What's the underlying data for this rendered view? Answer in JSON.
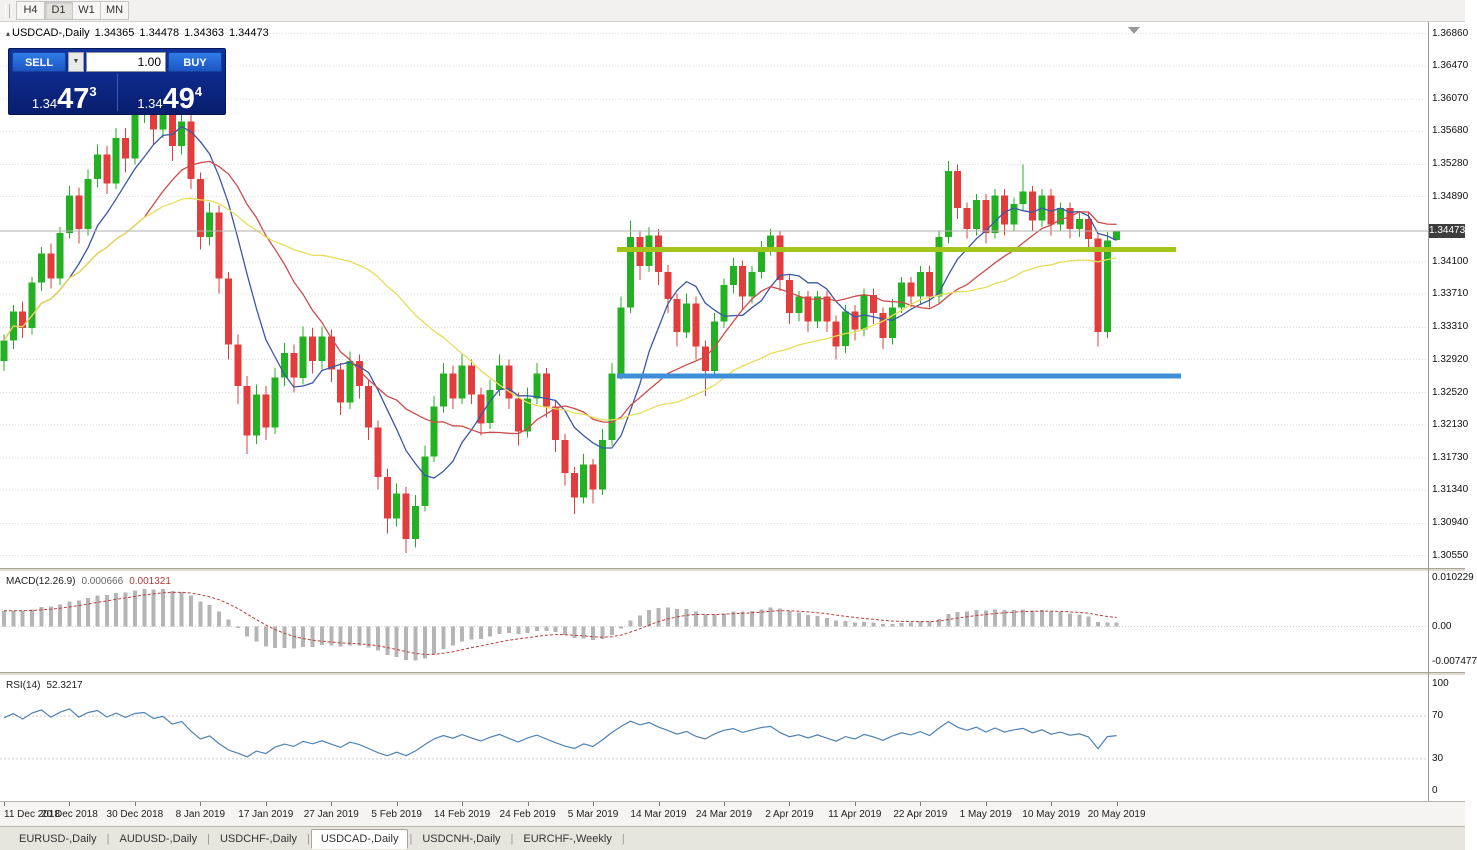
{
  "toolbar": {
    "periods": [
      "H4",
      "D1",
      "W1",
      "MN"
    ],
    "active": "D1"
  },
  "icons": {
    "collapse": "▴",
    "dropdown": "▼"
  },
  "ohlc": {
    "symbol": "USDCAD-,Daily",
    "open": "1.34365",
    "high": "1.34478",
    "low": "1.34363",
    "close": "1.34473"
  },
  "trade": {
    "sell_label": "SELL",
    "buy_label": "BUY",
    "volume": "1.00",
    "sell_price": {
      "base": "1.34",
      "big": "47",
      "sup": "3"
    },
    "buy_price": {
      "base": "1.34",
      "big": "49",
      "sup": "4"
    }
  },
  "current_price": {
    "label": "1.34473",
    "value": 1.34473
  },
  "tabs": {
    "items": [
      "EURUSD-,Daily",
      "AUDUSD-,Daily",
      "USDCHF-,Daily",
      "USDCAD-,Daily",
      "USDCNH-,Daily",
      "EURCHF-,Weekly"
    ],
    "active_index": 3,
    "divider": "|"
  },
  "chart_data": {
    "type": "candlestick",
    "title": "USDCAD-,Daily",
    "ylim": [
      1.304,
      1.37
    ],
    "price_ticks": [
      1.3686,
      1.3647,
      1.3607,
      1.3568,
      1.3528,
      1.3489,
      1.341,
      1.3371,
      1.3331,
      1.3292,
      1.3252,
      1.3213,
      1.3173,
      1.3134,
      1.3094,
      1.3055
    ],
    "colors": {
      "bull": "#23b123",
      "bear": "#e23c3c",
      "grid": "#dcdcdc",
      "bid_line": "#b0b0b0"
    },
    "moving_averages": [
      {
        "period": 8,
        "color": "#3a57a8"
      },
      {
        "period": 16,
        "color": "#cc4b4b"
      },
      {
        "period": 34,
        "color": "#e6de5a"
      }
    ],
    "annotations": [
      {
        "price": 1.3425,
        "x1": 617,
        "x2": 1176,
        "color": "#a3c41b",
        "width": 5
      },
      {
        "price": 1.3272,
        "x1": 617,
        "x2": 1181,
        "color": "#3d8fd9",
        "width": 5
      }
    ],
    "dates": [
      "11 Dec 2018",
      "20 Dec 2018",
      "30 Dec 2018",
      "8 Jan 2019",
      "17 Jan 2019",
      "27 Jan 2019",
      "5 Feb 2019",
      "14 Feb 2019",
      "24 Feb 2019",
      "5 Mar 2019",
      "14 Mar 2019",
      "24 Mar 2019",
      "2 Apr 2019",
      "11 Apr 2019",
      "22 Apr 2019",
      "1 May 2019",
      "10 May 2019",
      "20 May 2019"
    ],
    "candles": [
      [
        1.329,
        1.3322,
        1.3278,
        1.3315
      ],
      [
        1.3315,
        1.3358,
        1.3305,
        1.335
      ],
      [
        1.335,
        1.3362,
        1.3318,
        1.333
      ],
      [
        1.333,
        1.3392,
        1.3322,
        1.3385
      ],
      [
        1.3385,
        1.3428,
        1.3375,
        1.342
      ],
      [
        1.342,
        1.3432,
        1.3378,
        1.339
      ],
      [
        1.339,
        1.3452,
        1.3382,
        1.3445
      ],
      [
        1.3445,
        1.3502,
        1.3438,
        1.349
      ],
      [
        1.349,
        1.35,
        1.3432,
        1.345
      ],
      [
        1.345,
        1.3522,
        1.3442,
        1.351
      ],
      [
        1.351,
        1.3552,
        1.35,
        1.354
      ],
      [
        1.354,
        1.355,
        1.3492,
        1.3505
      ],
      [
        1.3505,
        1.3572,
        1.3498,
        1.356
      ],
      [
        1.356,
        1.3572,
        1.3518,
        1.3535
      ],
      [
        1.3535,
        1.3598,
        1.3528,
        1.359
      ],
      [
        1.359,
        1.3618,
        1.3578,
        1.3605
      ],
      [
        1.3605,
        1.3615,
        1.3552,
        1.357
      ],
      [
        1.357,
        1.3608,
        1.356,
        1.3598
      ],
      [
        1.3598,
        1.3608,
        1.3532,
        1.355
      ],
      [
        1.355,
        1.3598,
        1.354,
        1.358
      ],
      [
        1.358,
        1.3588,
        1.3498,
        1.351
      ],
      [
        1.351,
        1.3518,
        1.3425,
        1.344
      ],
      [
        1.344,
        1.3482,
        1.343,
        1.347
      ],
      [
        1.347,
        1.3478,
        1.3372,
        1.339
      ],
      [
        1.339,
        1.3398,
        1.3292,
        1.331
      ],
      [
        1.331,
        1.3322,
        1.3238,
        1.326
      ],
      [
        1.326,
        1.3272,
        1.3178,
        1.32
      ],
      [
        1.32,
        1.3262,
        1.319,
        1.325
      ],
      [
        1.325,
        1.326,
        1.3195,
        1.321
      ],
      [
        1.321,
        1.3282,
        1.3202,
        1.327
      ],
      [
        1.327,
        1.3312,
        1.326,
        1.33
      ],
      [
        1.33,
        1.331,
        1.3252,
        1.327
      ],
      [
        1.327,
        1.3332,
        1.3262,
        1.332
      ],
      [
        1.332,
        1.333,
        1.3275,
        1.329
      ],
      [
        1.329,
        1.3332,
        1.328,
        1.332
      ],
      [
        1.332,
        1.3328,
        1.3265,
        1.328
      ],
      [
        1.328,
        1.3288,
        1.3225,
        1.324
      ],
      [
        1.324,
        1.3302,
        1.3232,
        1.329
      ],
      [
        1.329,
        1.3298,
        1.3245,
        1.326
      ],
      [
        1.326,
        1.3268,
        1.3195,
        1.321
      ],
      [
        1.321,
        1.3218,
        1.3135,
        1.315
      ],
      [
        1.315,
        1.316,
        1.3082,
        1.31
      ],
      [
        1.31,
        1.3142,
        1.309,
        1.313
      ],
      [
        1.313,
        1.3138,
        1.3058,
        1.3075
      ],
      [
        1.3075,
        1.3128,
        1.3065,
        1.3115
      ],
      [
        1.3115,
        1.3188,
        1.3108,
        1.3175
      ],
      [
        1.3175,
        1.3248,
        1.3168,
        1.3235
      ],
      [
        1.3235,
        1.3288,
        1.3228,
        1.3275
      ],
      [
        1.3275,
        1.3285,
        1.3232,
        1.3245
      ],
      [
        1.3245,
        1.3298,
        1.3238,
        1.3285
      ],
      [
        1.3285,
        1.3292,
        1.3238,
        1.325
      ],
      [
        1.325,
        1.3258,
        1.32,
        1.3215
      ],
      [
        1.3215,
        1.3268,
        1.3208,
        1.3255
      ],
      [
        1.3255,
        1.3298,
        1.3248,
        1.3285
      ],
      [
        1.3285,
        1.3292,
        1.3232,
        1.3245
      ],
      [
        1.3245,
        1.3252,
        1.3188,
        1.3205
      ],
      [
        1.3205,
        1.3258,
        1.3198,
        1.3245
      ],
      [
        1.3245,
        1.3288,
        1.3238,
        1.3275
      ],
      [
        1.3275,
        1.3282,
        1.3222,
        1.3235
      ],
      [
        1.3235,
        1.3242,
        1.318,
        1.3195
      ],
      [
        1.3195,
        1.3202,
        1.314,
        1.3155
      ],
      [
        1.3155,
        1.3162,
        1.3105,
        1.3125
      ],
      [
        1.3125,
        1.3178,
        1.3118,
        1.3165
      ],
      [
        1.3165,
        1.3172,
        1.3118,
        1.3135
      ],
      [
        1.3135,
        1.3208,
        1.3128,
        1.3195
      ],
      [
        1.3195,
        1.3288,
        1.3188,
        1.3275
      ],
      [
        1.3275,
        1.3368,
        1.3268,
        1.3355
      ],
      [
        1.3355,
        1.346,
        1.3348,
        1.344
      ],
      [
        1.344,
        1.3448,
        1.3388,
        1.3405
      ],
      [
        1.3405,
        1.3452,
        1.3398,
        1.3442
      ],
      [
        1.3442,
        1.345,
        1.3382,
        1.3398
      ],
      [
        1.3398,
        1.3406,
        1.3348,
        1.3365
      ],
      [
        1.3365,
        1.3372,
        1.3308,
        1.3325
      ],
      [
        1.3325,
        1.3372,
        1.3318,
        1.336
      ],
      [
        1.336,
        1.3368,
        1.3292,
        1.3308
      ],
      [
        1.3308,
        1.3315,
        1.3248,
        1.3278
      ],
      [
        1.3278,
        1.3348,
        1.327,
        1.3338
      ],
      [
        1.3338,
        1.339,
        1.333,
        1.3382
      ],
      [
        1.3382,
        1.3415,
        1.3372,
        1.3405
      ],
      [
        1.3405,
        1.3412,
        1.3352,
        1.3368
      ],
      [
        1.3368,
        1.3405,
        1.336,
        1.3398
      ],
      [
        1.3398,
        1.3435,
        1.339,
        1.3428
      ],
      [
        1.3428,
        1.345,
        1.3418,
        1.3442
      ],
      [
        1.3442,
        1.3448,
        1.3375,
        1.3388
      ],
      [
        1.3388,
        1.3395,
        1.3335,
        1.3348
      ],
      [
        1.3348,
        1.3375,
        1.3338,
        1.3368
      ],
      [
        1.3368,
        1.3375,
        1.3325,
        1.3338
      ],
      [
        1.3338,
        1.3375,
        1.333,
        1.3368
      ],
      [
        1.3368,
        1.3375,
        1.3325,
        1.3338
      ],
      [
        1.3338,
        1.3345,
        1.3292,
        1.3308
      ],
      [
        1.3308,
        1.3358,
        1.33,
        1.335
      ],
      [
        1.335,
        1.3358,
        1.3315,
        1.3328
      ],
      [
        1.3328,
        1.3378,
        1.332,
        1.337
      ],
      [
        1.337,
        1.3378,
        1.3335,
        1.3348
      ],
      [
        1.3348,
        1.3355,
        1.3305,
        1.3318
      ],
      [
        1.3318,
        1.3365,
        1.331,
        1.3355
      ],
      [
        1.3355,
        1.3392,
        1.3348,
        1.3385
      ],
      [
        1.3385,
        1.3392,
        1.3355,
        1.3368
      ],
      [
        1.3368,
        1.3405,
        1.336,
        1.3398
      ],
      [
        1.3398,
        1.3405,
        1.3355,
        1.3368
      ],
      [
        1.3368,
        1.3448,
        1.336,
        1.344
      ],
      [
        1.344,
        1.3532,
        1.3432,
        1.352
      ],
      [
        1.352,
        1.3528,
        1.3462,
        1.3475
      ],
      [
        1.3475,
        1.3482,
        1.3438,
        1.345
      ],
      [
        1.345,
        1.3492,
        1.3442,
        1.3485
      ],
      [
        1.3485,
        1.3492,
        1.3432,
        1.3445
      ],
      [
        1.3445,
        1.3498,
        1.3438,
        1.349
      ],
      [
        1.349,
        1.3498,
        1.3442,
        1.3455
      ],
      [
        1.3455,
        1.3488,
        1.3448,
        1.348
      ],
      [
        1.348,
        1.3528,
        1.3472,
        1.3495
      ],
      [
        1.3495,
        1.3502,
        1.3448,
        1.346
      ],
      [
        1.346,
        1.3498,
        1.3452,
        1.349
      ],
      [
        1.349,
        1.3498,
        1.3442,
        1.3455
      ],
      [
        1.3455,
        1.3482,
        1.3448,
        1.3475
      ],
      [
        1.3475,
        1.3482,
        1.3438,
        1.345
      ],
      [
        1.345,
        1.347,
        1.344,
        1.3462
      ],
      [
        1.3462,
        1.347,
        1.3425,
        1.3438
      ],
      [
        1.3438,
        1.3445,
        1.3308,
        1.3325
      ],
      [
        1.3325,
        1.3446,
        1.3318,
        1.3436
      ],
      [
        1.34365,
        1.34478,
        1.34363,
        1.34473
      ]
    ],
    "macd": {
      "name": "MACD(12.26.9)",
      "value_main": "0.000666",
      "value_signal": "0.001321",
      "ylim": [
        -0.007477,
        0.010229
      ],
      "ticks": [
        {
          "v": 0.010229,
          "t": "0.010229"
        },
        {
          "v": 0,
          "t": "0.00"
        },
        {
          "v": -0.007477,
          "t": "-0.007477"
        }
      ],
      "hist_color": "#b5b5b5",
      "signal_color": "#c43c3c"
    },
    "rsi": {
      "name": "RSI(14)",
      "value": "52.3217",
      "color": "#4f81b6",
      "levels": [
        70,
        30
      ],
      "ticks": [
        {
          "v": 100,
          "t": "100"
        },
        {
          "v": 70,
          "t": "70"
        },
        {
          "v": 30,
          "t": "30"
        },
        {
          "v": 0,
          "t": "0"
        }
      ]
    }
  }
}
